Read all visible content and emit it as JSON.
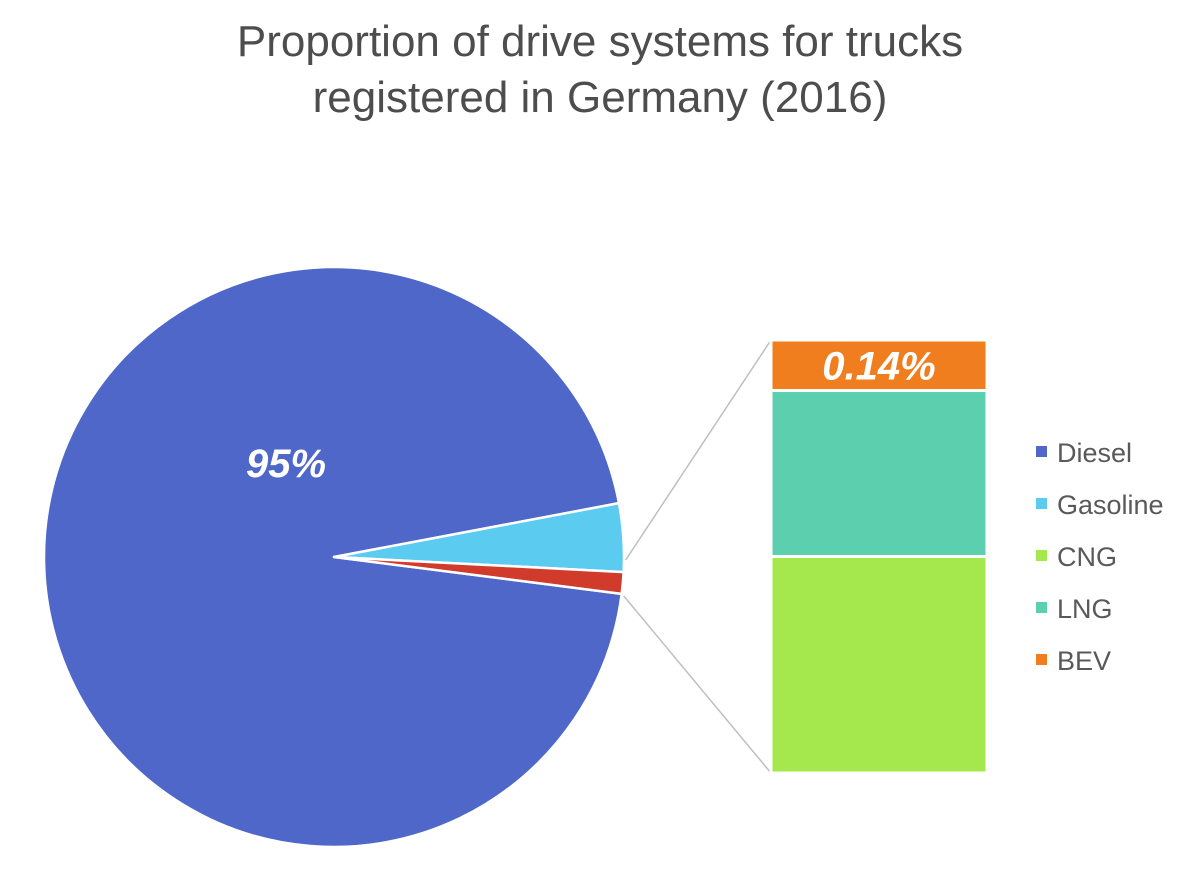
{
  "chart_data": {
    "type": "pie",
    "subtype": "pie-of-bar",
    "title_lines": [
      "Proportion of drive systems for trucks",
      "registered in Germany (2016)"
    ],
    "categories": [
      "Diesel",
      "Gasoline",
      "CNG",
      "LNG",
      "BEV"
    ],
    "values": [
      95.0,
      3.8,
      0.6,
      0.46,
      0.14
    ],
    "colors": [
      "#4e67c8",
      "#5ccbf0",
      "#a5e84e",
      "#5ccfae",
      "#f07e1e"
    ],
    "other_slice_color": "#d13b2b",
    "breakout_categories": [
      "CNG",
      "LNG",
      "BEV"
    ],
    "data_labels": {
      "Diesel": "95%",
      "BEV": "0.14%"
    },
    "legend_position": "right",
    "units": "%"
  }
}
